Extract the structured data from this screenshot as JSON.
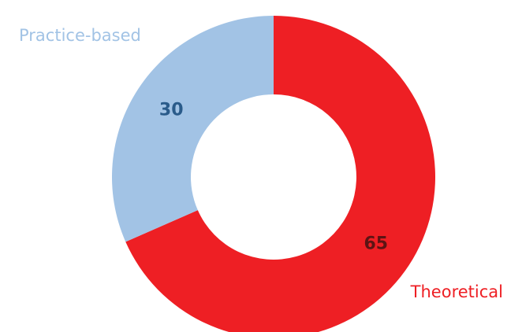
{
  "chart_data": {
    "type": "pie",
    "variant": "donut",
    "slices": [
      {
        "label": "Theoretical",
        "value": 65,
        "color": "#ee1f24",
        "value_color": "#5c1414"
      },
      {
        "label": "Practice-based",
        "value": 30,
        "color": "#a2c3e5",
        "value_color": "#2a5b8a"
      }
    ],
    "start": "top",
    "direction": "clockwise",
    "legend": "labels outside slices"
  }
}
